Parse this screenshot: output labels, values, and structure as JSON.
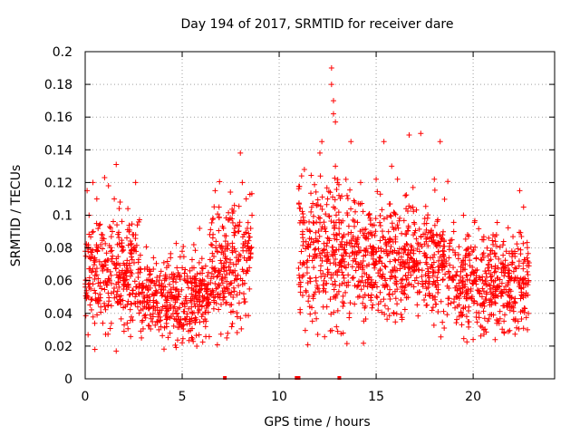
{
  "chart_data": {
    "type": "scatter",
    "title": "Day 194 of 2017, SRMTID for receiver dare",
    "xlabel": "GPS time / hours",
    "ylabel": "SRMTID / TECUs",
    "xlim": [
      0,
      24.2
    ],
    "ylim": [
      0,
      0.2
    ],
    "x_ticks": [
      "0",
      "5",
      "10",
      "15",
      "20"
    ],
    "x_tick_values": [
      0,
      5,
      10,
      15,
      20
    ],
    "y_ticks": [
      "0",
      "0.02",
      "0.04",
      "0.06",
      "0.08",
      "0.1",
      "0.12",
      "0.14",
      "0.16",
      "0.18",
      "0.2"
    ],
    "y_tick_values": [
      0,
      0.02,
      0.04,
      0.06,
      0.08,
      0.1,
      0.12,
      0.14,
      0.16,
      0.18,
      0.2
    ],
    "grid": true,
    "marker": "+",
    "color": "#ff0000",
    "segments": [
      {
        "x_start": 0.0,
        "x_end": 2.8,
        "y_median": 0.065,
        "y_spread": 0.02
      },
      {
        "x_start": 2.8,
        "x_end": 6.4,
        "y_median": 0.05,
        "y_spread": 0.015
      },
      {
        "x_start": 6.4,
        "x_end": 8.6,
        "y_median": 0.07,
        "y_spread": 0.02
      },
      {
        "x_start": 11.0,
        "x_end": 14.0,
        "y_median": 0.075,
        "y_spread": 0.025
      },
      {
        "x_start": 14.0,
        "x_end": 19.0,
        "y_median": 0.072,
        "y_spread": 0.02
      },
      {
        "x_start": 19.0,
        "x_end": 22.9,
        "y_median": 0.058,
        "y_spread": 0.018
      }
    ],
    "points": [
      [
        0.1,
        0.115
      ],
      [
        0.2,
        0.1
      ],
      [
        0.4,
        0.12
      ],
      [
        0.6,
        0.11
      ],
      [
        0.5,
        0.018
      ],
      [
        0.8,
        0.082
      ],
      [
        1.0,
        0.123
      ],
      [
        1.2,
        0.118
      ],
      [
        1.4,
        0.09
      ],
      [
        1.5,
        0.11
      ],
      [
        1.6,
        0.131
      ],
      [
        1.6,
        0.017
      ],
      [
        1.8,
        0.108
      ],
      [
        2.2,
        0.104
      ],
      [
        2.6,
        0.12
      ],
      [
        2.6,
        0.088
      ],
      [
        2.9,
        0.025
      ],
      [
        3.2,
        0.067
      ],
      [
        3.8,
        0.03
      ],
      [
        4.2,
        0.068
      ],
      [
        4.4,
        0.074
      ],
      [
        4.6,
        0.05
      ],
      [
        5.0,
        0.078
      ],
      [
        5.0,
        0.022
      ],
      [
        5.4,
        0.066
      ],
      [
        5.6,
        0.082
      ],
      [
        5.9,
        0.092
      ],
      [
        6.3,
        0.052
      ],
      [
        6.7,
        0.115
      ],
      [
        6.9,
        0.105
      ],
      [
        7.3,
        0.025
      ],
      [
        7.7,
        0.092
      ],
      [
        8.0,
        0.138
      ],
      [
        8.1,
        0.12
      ],
      [
        8.3,
        0.11
      ],
      [
        8.6,
        0.1
      ],
      [
        11.1,
        0.053
      ],
      [
        11.3,
        0.128
      ],
      [
        11.6,
        0.09
      ],
      [
        11.9,
        0.075
      ],
      [
        12.1,
        0.138
      ],
      [
        12.2,
        0.145
      ],
      [
        12.5,
        0.11
      ],
      [
        12.7,
        0.19
      ],
      [
        12.7,
        0.18
      ],
      [
        12.8,
        0.17
      ],
      [
        12.8,
        0.162
      ],
      [
        12.9,
        0.157
      ],
      [
        12.9,
        0.13
      ],
      [
        13.0,
        0.12
      ],
      [
        13.3,
        0.028
      ],
      [
        13.5,
        0.112
      ],
      [
        13.7,
        0.145
      ],
      [
        14.2,
        0.12
      ],
      [
        14.6,
        0.1
      ],
      [
        15.0,
        0.122
      ],
      [
        15.4,
        0.145
      ],
      [
        15.8,
        0.13
      ],
      [
        16.1,
        0.122
      ],
      [
        16.5,
        0.112
      ],
      [
        16.7,
        0.149
      ],
      [
        16.9,
        0.117
      ],
      [
        17.3,
        0.15
      ],
      [
        17.6,
        0.095
      ],
      [
        18.0,
        0.122
      ],
      [
        18.3,
        0.145
      ],
      [
        18.5,
        0.078
      ],
      [
        19.0,
        0.09
      ],
      [
        19.5,
        0.1
      ],
      [
        20.0,
        0.024
      ],
      [
        20.4,
        0.073
      ],
      [
        20.8,
        0.086
      ],
      [
        21.2,
        0.088
      ],
      [
        21.6,
        0.028
      ],
      [
        22.0,
        0.07
      ],
      [
        22.4,
        0.115
      ],
      [
        22.6,
        0.105
      ],
      [
        22.8,
        0.03
      ]
    ],
    "zero_markers": [
      7.2,
      10.9,
      11.0,
      13.1
    ]
  }
}
